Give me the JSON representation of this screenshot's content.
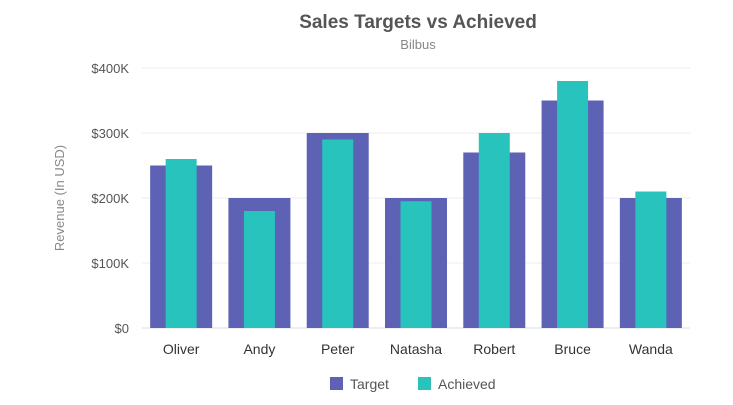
{
  "chart_data": {
    "type": "bar",
    "title": "Sales Targets vs Achieved",
    "subtitle": "Bilbus",
    "xlabel": "",
    "ylabel": "Revenue (In USD)",
    "ylim": [
      0,
      400000
    ],
    "yticks": [
      0,
      100000,
      200000,
      300000,
      400000
    ],
    "ytick_labels": [
      "$0",
      "$100K",
      "$200K",
      "$300K",
      "$400K"
    ],
    "categories": [
      "Oliver",
      "Andy",
      "Peter",
      "Natasha",
      "Robert",
      "Bruce",
      "Wanda"
    ],
    "series": [
      {
        "name": "Target",
        "color": "#5d62b5",
        "values": [
          250000,
          200000,
          300000,
          200000,
          270000,
          350000,
          200000
        ]
      },
      {
        "name": "Achieved",
        "color": "#29c3be",
        "values": [
          260000,
          180000,
          290000,
          195000,
          300000,
          380000,
          210000
        ]
      }
    ],
    "legend": "bottom",
    "grid": true
  }
}
